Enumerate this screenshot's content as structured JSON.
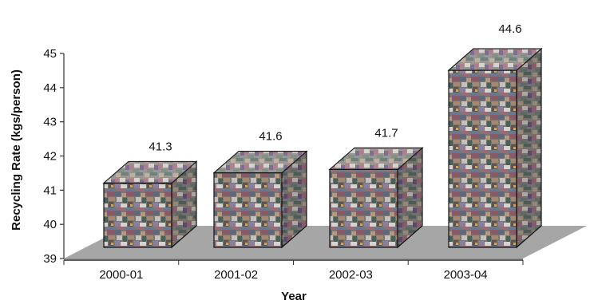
{
  "chart_data": {
    "type": "bar",
    "categories": [
      "2000-01",
      "2001-02",
      "2002-03",
      "2003-04"
    ],
    "values": [
      41.3,
      41.6,
      41.7,
      44.6
    ],
    "ylabel": "Recycling Rate (kgs/person)",
    "xlabel": "Year",
    "ylim": [
      39,
      45
    ],
    "yticks": [
      "39",
      "40",
      "41",
      "42",
      "43",
      "44",
      "45"
    ],
    "value_labels": [
      "41.3",
      "41.6",
      "41.7",
      "44.6"
    ],
    "grid": false,
    "legend": "none",
    "style": "3d-box",
    "colors": {
      "floor": "#a6a6a6",
      "axis": "#333333",
      "box_edge": "#111111"
    }
  }
}
